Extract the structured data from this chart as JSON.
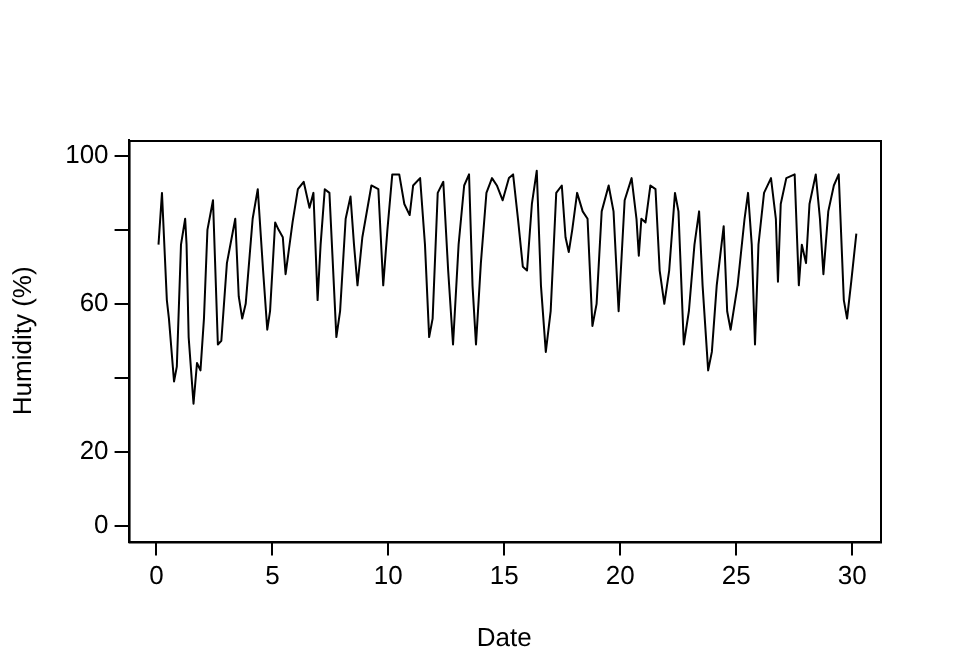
{
  "chart_data": {
    "type": "line",
    "xlabel": "Date",
    "ylabel": "Humidity (%)",
    "color": "#000000",
    "x": [
      0.09,
      0.24,
      0.45,
      0.54,
      0.76,
      0.88,
      1.06,
      1.24,
      1.3,
      1.39,
      1.6,
      1.75,
      1.9,
      2.05,
      2.2,
      2.44,
      2.65,
      2.8,
      3.04,
      3.4,
      3.55,
      3.7,
      3.85,
      4.15,
      4.37,
      4.6,
      4.78,
      4.9,
      5.12,
      5.27,
      5.45,
      5.57,
      5.87,
      6.1,
      6.35,
      6.6,
      6.77,
      6.95,
      7.08,
      7.26,
      7.46,
      7.76,
      7.92,
      8.16,
      8.37,
      8.52,
      8.67,
      8.88,
      9.27,
      9.57,
      9.78,
      9.96,
      10.17,
      10.47,
      10.69,
      10.92,
      11.07,
      11.37,
      11.58,
      11.76,
      11.91,
      12.13,
      12.37,
      12.58,
      12.79,
      13.03,
      13.27,
      13.48,
      13.63,
      13.78,
      13.99,
      14.23,
      14.47,
      14.68,
      14.93,
      15.2,
      15.38,
      15.59,
      15.8,
      15.98,
      16.19,
      16.4,
      16.58,
      16.79,
      17.0,
      17.24,
      17.48,
      17.64,
      17.78,
      17.93,
      18.14,
      18.38,
      18.59,
      18.8,
      18.98,
      19.2,
      19.5,
      19.71,
      19.93,
      20.19,
      20.49,
      20.7,
      20.8,
      20.91,
      21.09,
      21.3,
      21.52,
      21.7,
      21.9,
      22.11,
      22.36,
      22.51,
      22.74,
      22.96,
      23.2,
      23.4,
      23.55,
      23.79,
      23.95,
      24.16,
      24.46,
      24.61,
      24.76,
      25.06,
      25.36,
      25.51,
      25.67,
      25.81,
      25.96,
      26.2,
      26.5,
      26.71,
      26.8,
      26.92,
      27.16,
      27.52,
      27.7,
      27.83,
      28.01,
      28.16,
      28.43,
      28.61,
      28.76,
      28.97,
      29.21,
      29.42,
      29.64,
      29.78,
      29.96,
      30.18
    ],
    "values": [
      76,
      90,
      61,
      56,
      39,
      43,
      76,
      83,
      76,
      51,
      33,
      44,
      42,
      56,
      80,
      88,
      49,
      50,
      71,
      83,
      62,
      56,
      60,
      83,
      91,
      69,
      53,
      58,
      82,
      80,
      78,
      68,
      82,
      91,
      93,
      86,
      90,
      61,
      76,
      91,
      90,
      51,
      58,
      83,
      89,
      76,
      65,
      78,
      92,
      91,
      65,
      80,
      95,
      95,
      87,
      84,
      92,
      94,
      76,
      51,
      56,
      90,
      93,
      69,
      49,
      76,
      92,
      95,
      65,
      49,
      71,
      90,
      94,
      92,
      88,
      94,
      95,
      83,
      70,
      69,
      87,
      96,
      65,
      47,
      58,
      90,
      92,
      78,
      74,
      80,
      90,
      85,
      83,
      54,
      60,
      85,
      92,
      85,
      58,
      88,
      94,
      83,
      73,
      83,
      82,
      92,
      91,
      69,
      60,
      69,
      90,
      85,
      49,
      58,
      76,
      85,
      65,
      42,
      47,
      65,
      81,
      58,
      53,
      65,
      83,
      90,
      76,
      49,
      76,
      90,
      94,
      83,
      66,
      87,
      94,
      95,
      65,
      76,
      71,
      87,
      95,
      83,
      68,
      85,
      92,
      95,
      61,
      56,
      66,
      79
    ],
    "xlim": [
      -1.2,
      31.2
    ],
    "ylim": [
      -4.3,
      104.3
    ],
    "xticks": [
      0,
      5,
      10,
      15,
      20,
      25,
      30
    ],
    "yticks": [
      0,
      20,
      {
        "value": 40,
        "label": null
      },
      60,
      {
        "value": 80,
        "label": null
      },
      100
    ]
  }
}
